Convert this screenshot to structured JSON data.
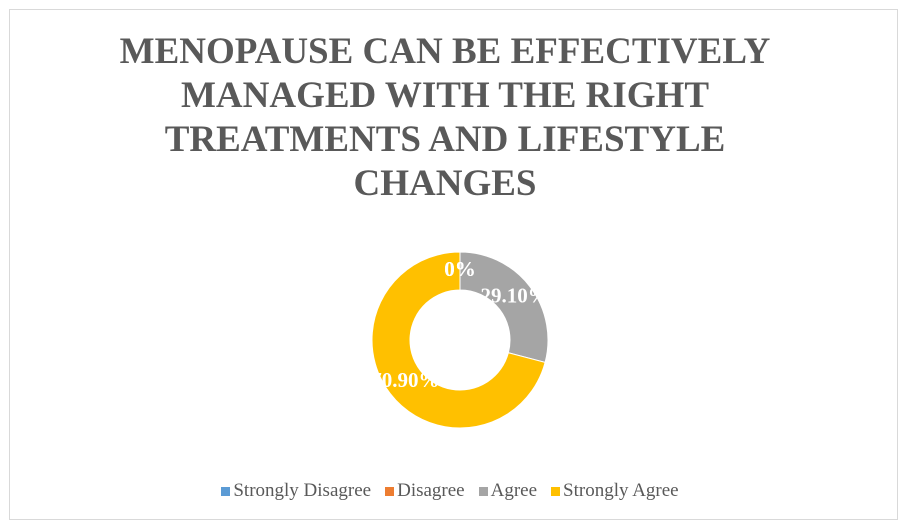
{
  "chart_data": {
    "type": "donut",
    "title": "MENOPAUSE CAN BE EFFECTIVELY MANAGED WITH THE RIGHT TREATMENTS AND LIFESTYLE CHANGES",
    "categories": [
      "Strongly Disagree",
      "Disagree",
      "Agree",
      "Strongly Agree"
    ],
    "values": [
      0,
      0,
      29.1,
      70.9
    ],
    "value_labels": [
      "0%",
      "0%",
      "29.10%",
      "70.90%"
    ],
    "colors": [
      "#5b9bd5",
      "#ed7d31",
      "#a5a5a5",
      "#ffc000"
    ],
    "legend": "bottom"
  }
}
